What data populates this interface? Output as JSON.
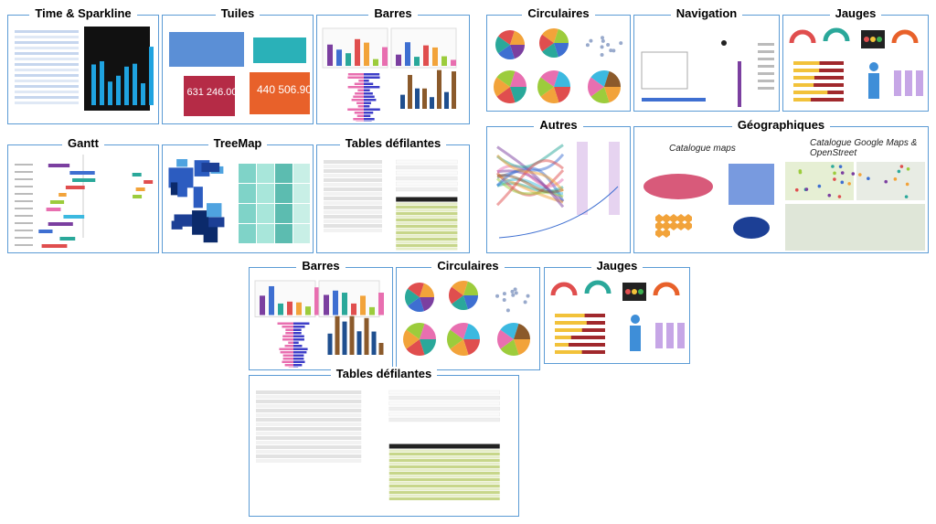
{
  "panels": [
    {
      "title": "Time & Sparkline"
    },
    {
      "title": "Tuiles"
    },
    {
      "title": "Barres"
    },
    {
      "title": "Circulaires"
    },
    {
      "title": "Navigation"
    },
    {
      "title": "Jauges"
    },
    {
      "title": "Gantt"
    },
    {
      "title": "TreeMap"
    },
    {
      "title": "Tables défilantes"
    },
    {
      "title": "Autres"
    },
    {
      "title": "Géographiques"
    },
    {
      "title": "Barres"
    },
    {
      "title": "Circulaires"
    },
    {
      "title": "Jauges"
    },
    {
      "title": "Tables défilantes"
    }
  ],
  "tiles": {
    "value_1": "631 246.00",
    "value_2": "440 506.90"
  },
  "maps": {
    "caption_1": "Catalogue maps",
    "caption_2": "Catalogue Google Maps & OpenStreet"
  }
}
